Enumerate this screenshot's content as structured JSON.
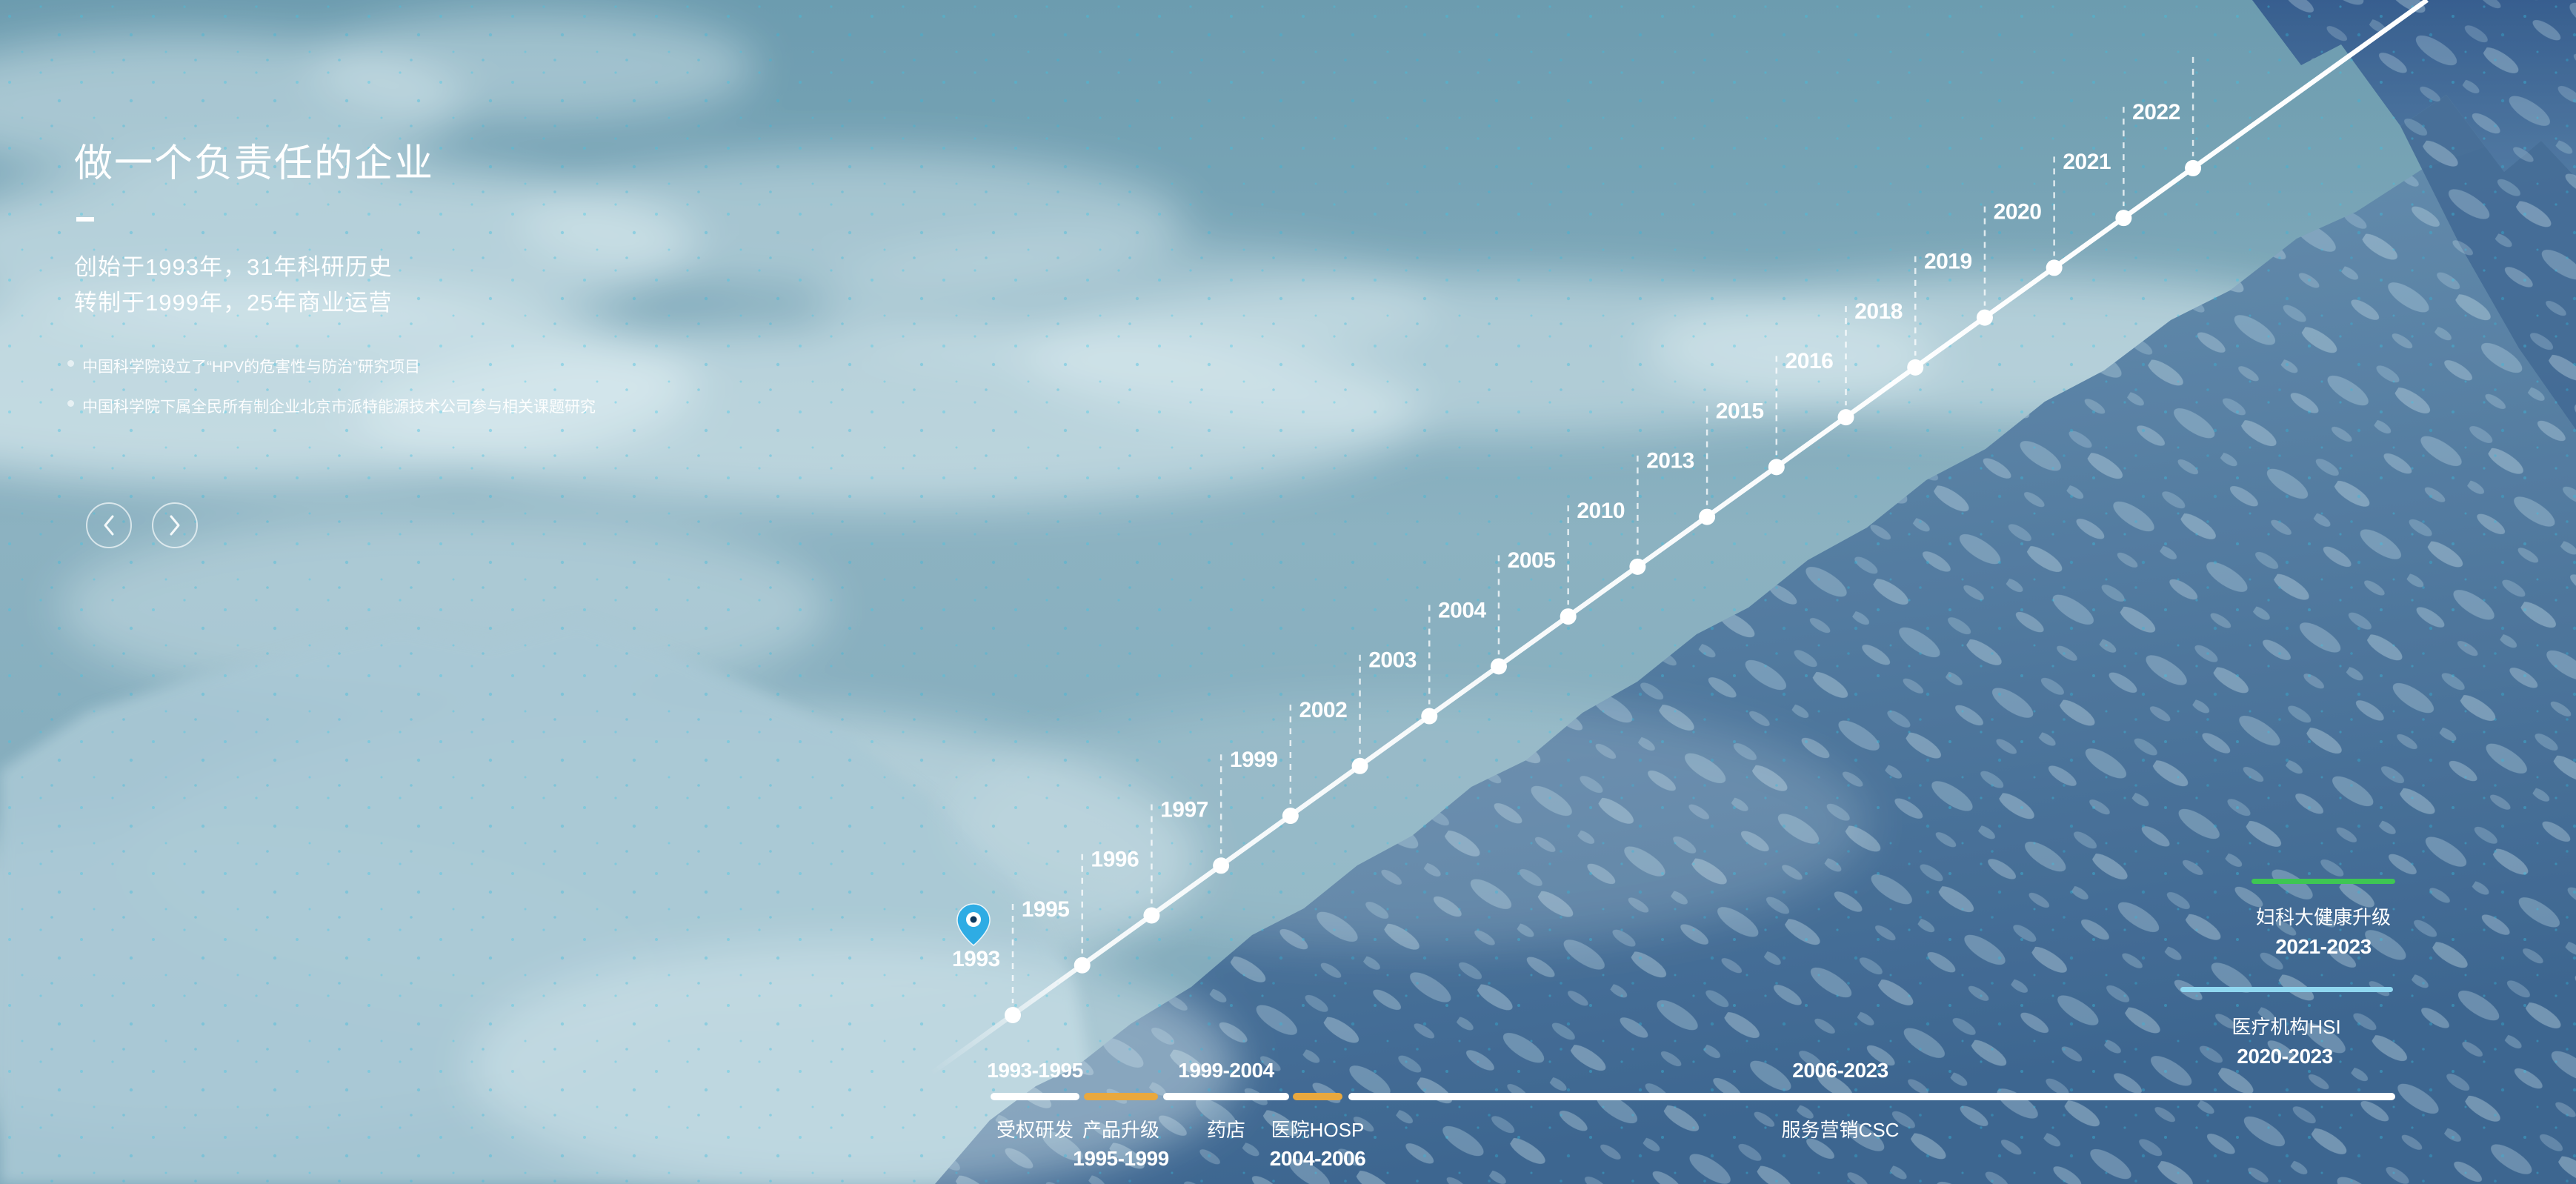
{
  "hero": {
    "title": "做一个负责任的企业",
    "subtitle_lines": [
      "创始于1993年，31年科研历史",
      "转制于1999年，25年商业运营"
    ],
    "bullets": [
      "中国科学院设立了“HPV的危害性与防治”研究项目",
      "中国科学院下属全民所有制企业北京市派特能源技术公司参与相关课题研究"
    ]
  },
  "carousel": {
    "prev_icon": "chevron-left",
    "next_icon": "chevron-right"
  },
  "timeline": {
    "years": [
      "1993",
      "1995",
      "1996",
      "1997",
      "1999",
      "2002",
      "2003",
      "2004",
      "2005",
      "2010",
      "2013",
      "2015",
      "2016",
      "2018",
      "2019",
      "2020",
      "2021",
      "2022"
    ],
    "pin_year": "1993",
    "pin_icon": "location-pin"
  },
  "phases": [
    {
      "name": "受权研发",
      "period": "1993-1995",
      "period_position": "above",
      "color": "white"
    },
    {
      "name": "产品升级",
      "period": "1995-1999",
      "period_position": "below",
      "color": "orange"
    },
    {
      "name": "药店",
      "period": "1999-2004",
      "period_position": "above",
      "color": "white"
    },
    {
      "name": "医院HOSP",
      "period": "2004-2006",
      "period_position": "below",
      "color": "orange"
    },
    {
      "name": "服务营销CSC",
      "period": "2006-2023",
      "period_position": "above",
      "color": "white"
    }
  ],
  "legend": [
    {
      "name": "妇科大健康升级",
      "period": "2021-2023",
      "color": "#3EC653"
    },
    {
      "name": "医疗机构HSI",
      "period": "2020-2023",
      "color": "#8FD7F0"
    }
  ],
  "colors": {
    "orange": "#E9A83E",
    "green": "#3EC653",
    "cyan": "#8FD7F0",
    "pin_blue": "#2EACE4",
    "white": "#FFFFFF"
  }
}
